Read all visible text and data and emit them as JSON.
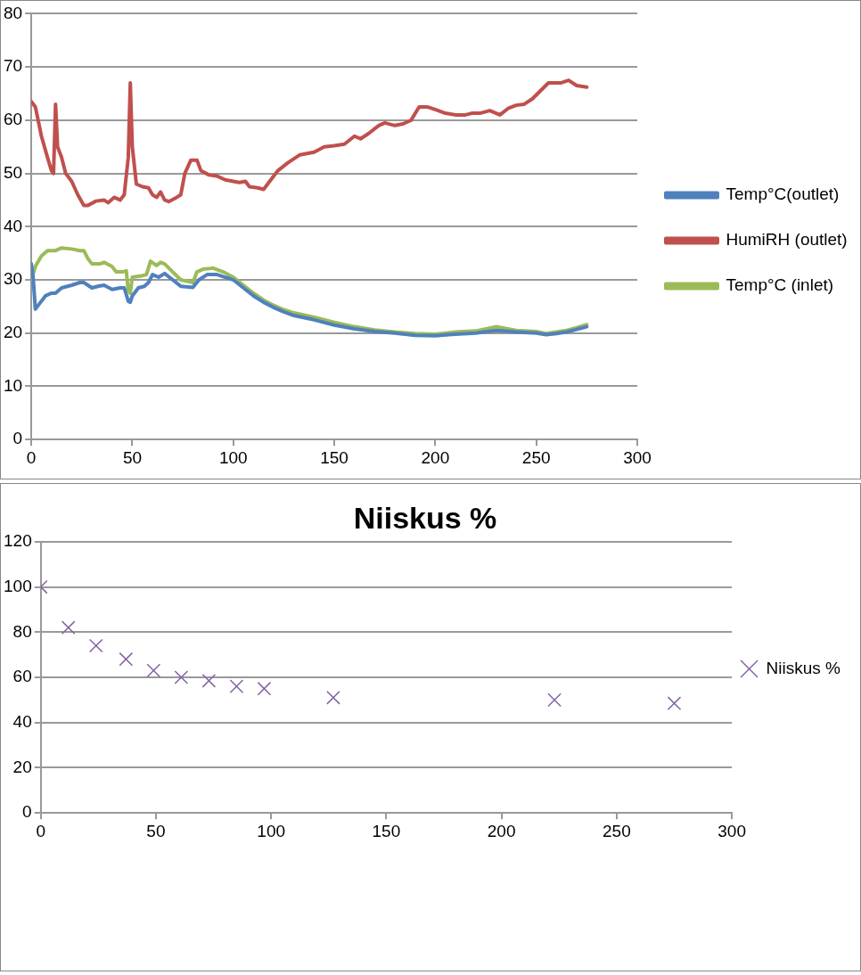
{
  "chart_data": [
    {
      "type": "line",
      "xlim": [
        0,
        300
      ],
      "xticks": [
        0,
        50,
        100,
        150,
        200,
        250,
        300
      ],
      "ylim": [
        0,
        80
      ],
      "yticks": [
        0,
        10,
        20,
        30,
        40,
        50,
        60,
        70,
        80
      ],
      "grid": "y",
      "legend": "right",
      "marker": "none",
      "line_style": "solid",
      "series": [
        {
          "name": "Temp°C(outlet)",
          "color": "#4f81bd",
          "x": [
            0,
            1,
            2,
            4,
            7,
            10,
            12,
            15,
            20,
            24,
            26,
            30,
            33,
            36,
            40,
            44,
            46,
            48,
            49,
            50,
            53,
            56,
            58,
            60,
            63,
            66,
            70,
            74,
            80,
            83,
            87,
            92,
            96,
            100,
            105,
            110,
            115,
            120,
            125,
            130,
            140,
            150,
            160,
            170,
            180,
            190,
            200,
            210,
            220,
            230,
            240,
            250,
            255,
            260,
            265,
            270,
            275
          ],
          "values": [
            33,
            30,
            24.5,
            25.5,
            27,
            27.5,
            27.5,
            28.5,
            29,
            29.5,
            29.5,
            28.5,
            28.8,
            29,
            28.2,
            28.5,
            28.5,
            26,
            25.8,
            27,
            28.5,
            28.8,
            29.5,
            31,
            30.5,
            31.2,
            30,
            28.8,
            28.6,
            30,
            31,
            31,
            30.5,
            30,
            28.5,
            27,
            25.8,
            24.8,
            24,
            23.3,
            22.5,
            21.5,
            20.8,
            20.3,
            20,
            19.6,
            19.5,
            19.8,
            20,
            20.5,
            20.2,
            20,
            19.7,
            19.9,
            20.2,
            20.7,
            21.2
          ]
        },
        {
          "name": "HumiRH (outlet)",
          "color": "#c0504d",
          "x": [
            0,
            2,
            5,
            8,
            10,
            11,
            12,
            13,
            15,
            17,
            20,
            23,
            26,
            28,
            32,
            36,
            38,
            41,
            44,
            46,
            48,
            49,
            50,
            52,
            55,
            58,
            60,
            62,
            64,
            66,
            68,
            72,
            74,
            76,
            79,
            82,
            84,
            88,
            92,
            96,
            100,
            103,
            106,
            108,
            112,
            115,
            118,
            122,
            127,
            133,
            140,
            145,
            150,
            155,
            160,
            163,
            167,
            172,
            175,
            180,
            184,
            188,
            192,
            196,
            200,
            205,
            210,
            215,
            218,
            222,
            227,
            232,
            236,
            240,
            244,
            248,
            252,
            256,
            262,
            266,
            270,
            275
          ],
          "values": [
            63.5,
            62.5,
            57,
            53,
            50.5,
            50,
            63,
            55,
            53,
            50,
            48.5,
            46,
            44,
            44,
            44.8,
            45,
            44.5,
            45.5,
            45,
            46,
            53,
            67,
            55,
            48,
            47.5,
            47.3,
            46,
            45.5,
            46.5,
            45,
            44.7,
            45.5,
            46,
            50,
            52.5,
            52.5,
            50.5,
            49.7,
            49.5,
            48.8,
            48.5,
            48.3,
            48.5,
            47.5,
            47.3,
            47,
            48.5,
            50.5,
            52,
            53.5,
            54,
            55,
            55.2,
            55.5,
            57,
            56.5,
            57.5,
            59,
            59.5,
            59,
            59.3,
            60,
            62.5,
            62.5,
            62,
            61.3,
            61,
            61,
            61.3,
            61.3,
            61.8,
            61,
            62.2,
            62.8,
            63,
            64,
            65.5,
            67,
            67,
            67.5,
            66.5,
            66.2
          ]
        },
        {
          "name": "Temp°C (inlet)",
          "color": "#9bbb59",
          "x": [
            0,
            2,
            5,
            8,
            12,
            15,
            20,
            24,
            26,
            28,
            30,
            34,
            36,
            40,
            42,
            45,
            47,
            48,
            49,
            50,
            54,
            57,
            59,
            62,
            64,
            66,
            70,
            74,
            80,
            82,
            85,
            90,
            95,
            100,
            105,
            110,
            115,
            120,
            125,
            130,
            140,
            150,
            160,
            170,
            180,
            190,
            200,
            210,
            220,
            230,
            240,
            250,
            255,
            260,
            265,
            270,
            275
          ],
          "values": [
            30,
            32.5,
            34.5,
            35.5,
            35.5,
            36,
            35.8,
            35.5,
            35.5,
            34,
            33,
            33,
            33.3,
            32.5,
            31.5,
            31.5,
            31.7,
            28,
            27.5,
            30.5,
            30.7,
            31,
            33.5,
            32.7,
            33.3,
            33,
            31.5,
            30,
            29.5,
            31.5,
            32,
            32.2,
            31.5,
            30.5,
            29,
            27.5,
            26.2,
            25.2,
            24.4,
            23.8,
            23,
            22,
            21.2,
            20.6,
            20.2,
            19.9,
            19.8,
            20.2,
            20.4,
            21.2,
            20.5,
            20.3,
            19.9,
            20.2,
            20.5,
            21,
            21.6
          ]
        }
      ]
    },
    {
      "type": "scatter",
      "title": "Niiskus %",
      "xlim": [
        0,
        300
      ],
      "xticks": [
        0,
        50,
        100,
        150,
        200,
        250,
        300
      ],
      "ylim": [
        0,
        120
      ],
      "yticks": [
        0,
        20,
        40,
        60,
        80,
        100,
        120
      ],
      "grid": "y",
      "legend": "right",
      "marker": "cross",
      "series": [
        {
          "name": "Niiskus %",
          "color": "#8064a2",
          "x": [
            0,
            12,
            24,
            37,
            49,
            61,
            73,
            85,
            97,
            127,
            223,
            275
          ],
          "values": [
            100,
            82,
            74,
            68,
            63,
            60,
            58.5,
            56,
            55,
            51,
            50,
            48.5
          ]
        }
      ]
    }
  ]
}
